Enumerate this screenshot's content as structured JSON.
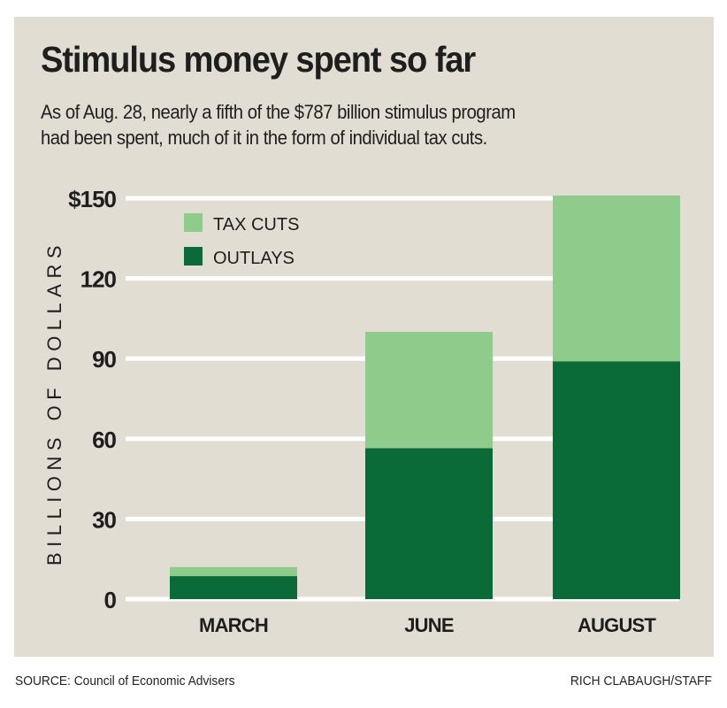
{
  "header": {
    "title": "Stimulus money spent so far",
    "subtitle_lines": [
      "As of Aug. 28, nearly a fifth of the $787 billion stimulus program",
      "had been spent, much of it in the form of individual tax cuts."
    ]
  },
  "footer": {
    "source": "SOURCE: Council of Economic Advisers",
    "credit": "RICH CLABAUGH/STAFF"
  },
  "colors": {
    "background": "#e2ddd3",
    "gridline": "#ffffff",
    "tax_cuts": "#8fcc8c",
    "outlays": "#0a6a38",
    "text": "#1e1e1e"
  },
  "chart_data": {
    "type": "bar",
    "stacked": true,
    "title": "Stimulus money spent so far",
    "xlabel": "",
    "ylabel": "BILLIONS OF DOLLARS",
    "ylim": [
      0,
      150
    ],
    "yticks": [
      0,
      30,
      60,
      90,
      120,
      150
    ],
    "ytick_labels": [
      "0",
      "30",
      "60",
      "90",
      "120",
      "$150"
    ],
    "grid": true,
    "legend_position": "top-left",
    "categories": [
      "MARCH",
      "JUNE",
      "AUGUST"
    ],
    "series": [
      {
        "name": "OUTLAYS",
        "color": "#0a6a38",
        "values": [
          8.6,
          56.5,
          89
        ]
      },
      {
        "name": "TAX CUTS",
        "color": "#8fcc8c",
        "values": [
          3.4,
          43.5,
          62
        ]
      }
    ],
    "legend": [
      {
        "name": "TAX CUTS",
        "color": "#8fcc8c"
      },
      {
        "name": "OUTLAYS",
        "color": "#0a6a38"
      }
    ]
  }
}
